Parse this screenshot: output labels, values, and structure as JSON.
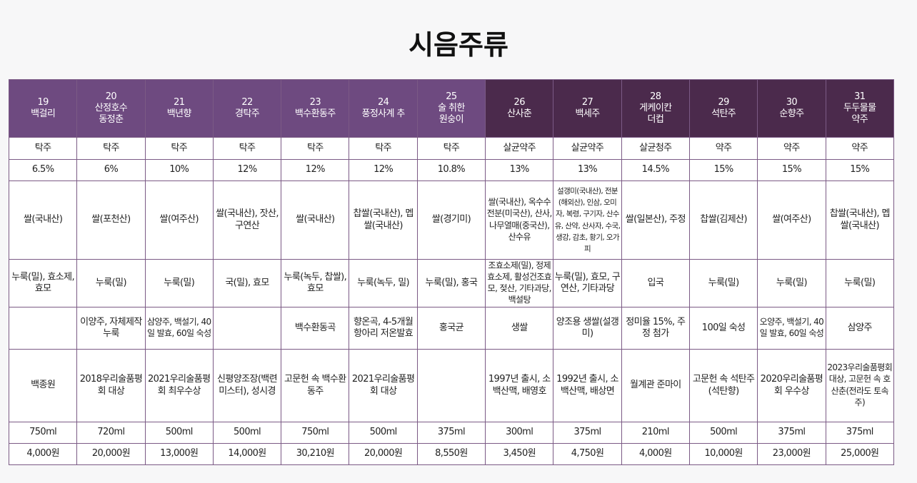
{
  "title": "시음주류",
  "table": {
    "header": [
      {
        "number": "19",
        "name": "백걸리"
      },
      {
        "number": "20",
        "name": "산정호수\n동정춘"
      },
      {
        "number": "21",
        "name": "백년향"
      },
      {
        "number": "22",
        "name": "경탁주"
      },
      {
        "number": "23",
        "name": "백수환동주"
      },
      {
        "number": "24",
        "name": "풍정사계 추"
      },
      {
        "number": "25",
        "name": "술 취한\n원숭이"
      },
      {
        "number": "26",
        "name": "산사춘"
      },
      {
        "number": "27",
        "name": "백세주"
      },
      {
        "number": "28",
        "name": "게케이칸\n더컵"
      },
      {
        "number": "29",
        "name": "석탄주"
      },
      {
        "number": "30",
        "name": "순향주"
      },
      {
        "number": "31",
        "name": "두두물물\n약주"
      }
    ],
    "rows": [
      [
        "탁주",
        "탁주",
        "탁주",
        "탁주",
        "탁주",
        "탁주",
        "탁주",
        "살균약주",
        "살균약주",
        "살균청주",
        "약주",
        "약주",
        "약주"
      ],
      [
        "6.5%",
        "6%",
        "10%",
        "12%",
        "12%",
        "12%",
        "10.8%",
        "13%",
        "13%",
        "14.5%",
        "15%",
        "15%",
        "15%"
      ],
      [
        "쌀(국내산)",
        "쌀(포천산)",
        "쌀(여주산)",
        "쌀(국내산), 잣산, 구연산",
        "쌀(국내산)",
        "찹쌀(국내산), 멥쌀(국내산)",
        "쌀(경기미)",
        "쌀(국내산), 옥수수전분(미국산), 산사, 나무열매(중국산), 산수유",
        "설갱미(국내산), 전분(해외산), 인삼, 오미자, 복령, 구기자, 산수유, 산약, 산사자, 수국, 생강, 감초, 황기, 오가피",
        "쌀(일본산), 주정",
        "찹쌀(김제산)",
        "쌀(여주산)",
        "찹쌀(국내산), 멥쌀(국내산)"
      ],
      [
        "누룩(밀), 효소제, 효모",
        "누룩(밀)",
        "누룩(밀)",
        "국(밀), 효모",
        "누룩(녹두, 찹쌀), 효모",
        "누룩(녹두, 밀)",
        "누룩(밀), 홍국",
        "조효소제(밀), 정제효소제, 활성건조효모, 젖산, 기타과당, 백설탕",
        "누룩(밀), 효모, 구연산, 기타과당",
        "입국",
        "누룩(밀)",
        "누룩(밀)",
        "누룩(밀)"
      ],
      [
        null,
        "이양주, 자체제작 누룩",
        "삼양주, 백설기, 40일 발효, 60일 숙성",
        null,
        "백수환동곡",
        "향온곡, 4-5개월 항아리 저온발효",
        "홍국균",
        "생쌀",
        "양조용 생쌀(설갱미)",
        "정미율 15%, 주정 첨가",
        "100일 숙성",
        "오양주, 백설기, 40일 발효, 60일 숙성",
        "삼양주"
      ],
      [
        "백종원",
        "2018우리술품평회 대상",
        "2021우리술품평회 최우수상",
        "신평양조장(백련미스터), 성시경",
        "고문헌 속 백수환동주",
        "2021우리술품평회 대상",
        null,
        "1997년 출시, 소백산맥, 배영호",
        "1992년 출시, 소백산맥, 배상면",
        "월계관 준마이",
        "고문헌 속 석탄주(석탄향)",
        "2020우리술품평회 우수상",
        "2023우리술품평회 대상, 고문헌 속 호산춘(전라도 토속주)"
      ],
      [
        "750ml",
        "720ml",
        "500ml",
        "500ml",
        "750ml",
        "500ml",
        "375ml",
        "300ml",
        "375ml",
        "210ml",
        "500ml",
        "375ml",
        "375ml"
      ],
      [
        "4,000원",
        "20,000원",
        "13,000원",
        "14,000원",
        "30,210원",
        "20,000원",
        "8,550원",
        "3,450원",
        "4,750원",
        "4,000원",
        "10,000원",
        "23,000원",
        "25,000원"
      ]
    ]
  }
}
